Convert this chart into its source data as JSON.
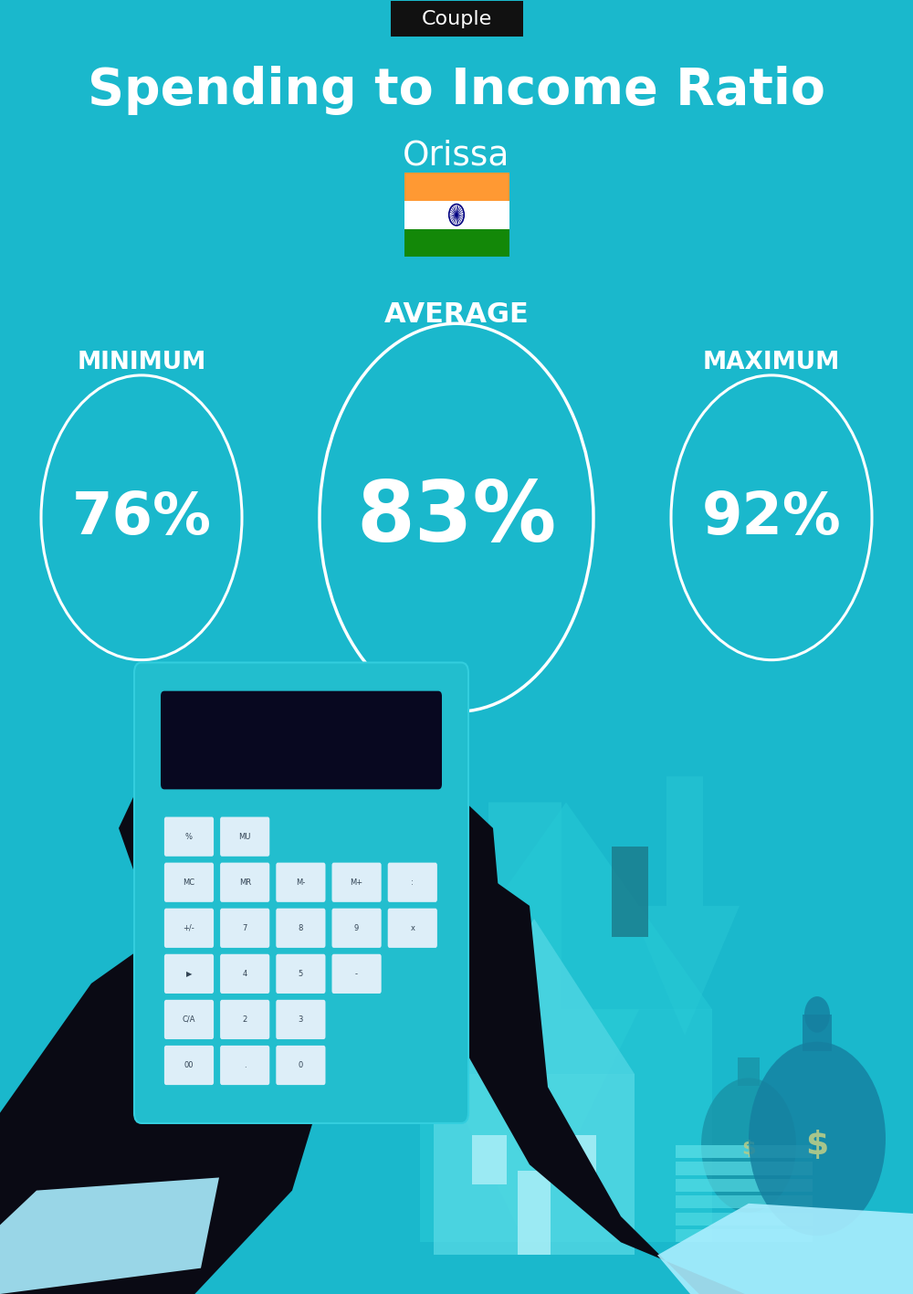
{
  "bg_color": "#1ab8cc",
  "title_tag": "Couple",
  "title_tag_bg": "#111111",
  "title_tag_color": "#ffffff",
  "main_title": "Spending to Income Ratio",
  "subtitle": "Orissa",
  "label_average": "AVERAGE",
  "label_minimum": "MINIMUM",
  "label_maximum": "MAXIMUM",
  "value_min": "76%",
  "value_avg": "83%",
  "value_max": "92%",
  "white": "#ffffff",
  "dark_arm": "#0a0a14",
  "cuff_color": "#aaeeff",
  "calc_body": "#25c0d0",
  "calc_display": "#080820",
  "btn_face": "#ddeef8",
  "btn_text": "#334455",
  "arrow_color": "#28cad8",
  "house_color": "#2ac8d5",
  "house_light": "#88e8f0",
  "money_bag_dark": "#1888a0",
  "money_bag_light": "#22aacc",
  "dollar_color": "#b8cc88",
  "flag_saffron": "#FF9933",
  "flag_white": "#FFFFFF",
  "flag_green": "#138808",
  "flag_chakra": "#000080",
  "chimney_dark": "#1a7a8a"
}
